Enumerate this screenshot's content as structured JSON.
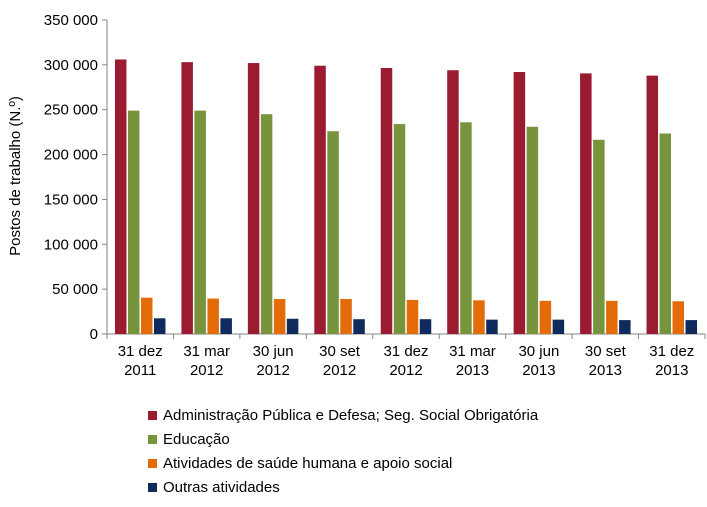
{
  "chart_data": {
    "type": "bar",
    "title": "",
    "xlabel": "",
    "ylabel": "Postos de trabalho (N.º)",
    "ylim": [
      0,
      350000
    ],
    "y_ticks": [
      0,
      50000,
      100000,
      150000,
      200000,
      250000,
      300000,
      350000
    ],
    "y_tick_labels": [
      "0",
      "50 000",
      "100 000",
      "150 000",
      "200 000",
      "250 000",
      "300 000",
      "350 000"
    ],
    "categories": [
      [
        "31 dez",
        "2011"
      ],
      [
        "31 mar",
        "2012"
      ],
      [
        "30 jun",
        "2012"
      ],
      [
        "30 set",
        "2012"
      ],
      [
        "31 dez",
        "2012"
      ],
      [
        "31 mar",
        "2013"
      ],
      [
        "30 jun",
        "2013"
      ],
      [
        "30 set",
        "2013"
      ],
      [
        "31 dez",
        "2013"
      ]
    ],
    "grid": false,
    "legend_position": "bottom",
    "series": [
      {
        "name": "Administração Pública e Defesa; Seg. Social Obrigatória",
        "color": "#9B1B30",
        "values": [
          306000,
          303000,
          302000,
          299000,
          296500,
          294000,
          292000,
          290500,
          288000
        ]
      },
      {
        "name": "Educação",
        "color": "#77933C",
        "values": [
          249000,
          249000,
          245000,
          226000,
          234000,
          236000,
          231000,
          216500,
          223500
        ]
      },
      {
        "name": "Atividades de saúde humana e apoio social",
        "color": "#E36C09",
        "values": [
          40500,
          39500,
          39000,
          39000,
          38000,
          37500,
          37000,
          37000,
          36500
        ]
      },
      {
        "name": "Outras atividades",
        "color": "#0F2A5C",
        "values": [
          17500,
          17500,
          17000,
          16500,
          16500,
          16000,
          16000,
          15500,
          15500
        ]
      }
    ]
  }
}
